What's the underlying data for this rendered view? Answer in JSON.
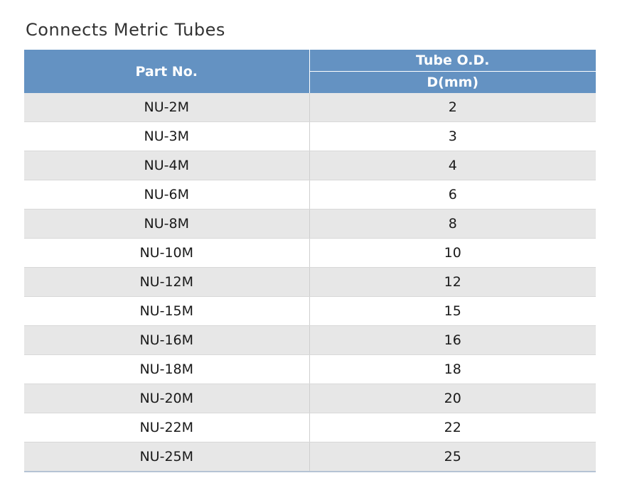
{
  "title": "Connects Metric Tubes",
  "table": {
    "headers": {
      "part_no": "Part No.",
      "tube_od": "Tube O.D.",
      "tube_od_unit": "D(mm)"
    },
    "rows": [
      {
        "part": "NU-2M",
        "od": "2"
      },
      {
        "part": "NU-3M",
        "od": "3"
      },
      {
        "part": "NU-4M",
        "od": "4"
      },
      {
        "part": "NU-6M",
        "od": "6"
      },
      {
        "part": "NU-8M",
        "od": "8"
      },
      {
        "part": "NU-10M",
        "od": "10"
      },
      {
        "part": "NU-12M",
        "od": "12"
      },
      {
        "part": "NU-15M",
        "od": "15"
      },
      {
        "part": "NU-16M",
        "od": "16"
      },
      {
        "part": "NU-18M",
        "od": "18"
      },
      {
        "part": "NU-20M",
        "od": "20"
      },
      {
        "part": "NU-22M",
        "od": "22"
      },
      {
        "part": "NU-25M",
        "od": "25"
      }
    ]
  },
  "colors": {
    "header_bg": "#6492c2",
    "header_text": "#ffffff",
    "row_stripe": "#e7e7e7"
  }
}
